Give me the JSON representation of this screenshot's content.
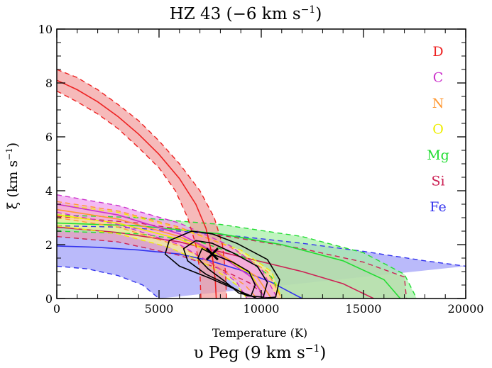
{
  "chart_data": {
    "type": "area",
    "title": "HZ 43 (−6 km s",
    "title_sup": "−1",
    "title_end": ")",
    "xlabel": "Temperature (K)",
    "ylabel": "ξ (km s",
    "ylabel_sup": "−1",
    "ylabel_end": ")",
    "subtitle": "υ Peg (9 km s",
    "subtitle_sup": "−1",
    "subtitle_end": ")",
    "xlim": [
      0,
      20000
    ],
    "ylim": [
      0,
      10
    ],
    "xticks": [
      "0",
      "5000",
      "10000",
      "15000",
      "20000"
    ],
    "yticks": [
      "0",
      "2",
      "4",
      "6",
      "8",
      "10"
    ],
    "legend_position": "top-right",
    "marker": {
      "x": 7600,
      "y": 1.65
    },
    "series": [
      {
        "name": "Fe",
        "color": "#3333ee",
        "fill": "#9f9ff8",
        "center": [
          [
            0,
            1.95
          ],
          [
            2000,
            1.9
          ],
          [
            4000,
            1.8
          ],
          [
            6000,
            1.65
          ],
          [
            7500,
            1.4
          ],
          [
            9000,
            1.05
          ],
          [
            10500,
            0.6
          ],
          [
            11500,
            0.2
          ],
          [
            12000,
            0
          ]
        ],
        "upper": [
          [
            0,
            2.7
          ],
          [
            3000,
            2.65
          ],
          [
            6000,
            2.5
          ],
          [
            9000,
            2.3
          ],
          [
            12000,
            2.05
          ],
          [
            15000,
            1.75
          ],
          [
            18000,
            1.4
          ],
          [
            20000,
            1.2
          ]
        ],
        "lower": [
          [
            0,
            1.2
          ],
          [
            1500,
            1.1
          ],
          [
            3000,
            0.85
          ],
          [
            4200,
            0.5
          ],
          [
            5000,
            0
          ]
        ]
      },
      {
        "name": "Si",
        "color": "#cc2255",
        "fill": "#e8a0b8",
        "center": [
          [
            0,
            2.65
          ],
          [
            3000,
            2.45
          ],
          [
            6000,
            2.1
          ],
          [
            9000,
            1.55
          ],
          [
            12000,
            1.0
          ],
          [
            14000,
            0.55
          ],
          [
            15500,
            0
          ]
        ],
        "upper": [
          [
            0,
            3.05
          ],
          [
            4000,
            2.8
          ],
          [
            8000,
            2.35
          ],
          [
            12000,
            1.85
          ],
          [
            15000,
            1.35
          ],
          [
            17000,
            0.8
          ],
          [
            17100,
            0
          ]
        ],
        "lower": [
          [
            0,
            2.3
          ],
          [
            3000,
            2.1
          ],
          [
            6000,
            1.6
          ],
          [
            8000,
            1.1
          ],
          [
            9500,
            0.55
          ],
          [
            10300,
            0
          ]
        ]
      },
      {
        "name": "Mg",
        "color": "#22dd33",
        "fill": "#a6f0a6",
        "center": [
          [
            0,
            2.8
          ],
          [
            4000,
            2.7
          ],
          [
            8000,
            2.4
          ],
          [
            11000,
            2.0
          ],
          [
            14000,
            1.4
          ],
          [
            16000,
            0.7
          ],
          [
            16800,
            0
          ]
        ],
        "upper": [
          [
            0,
            3.1
          ],
          [
            4000,
            3.0
          ],
          [
            8000,
            2.75
          ],
          [
            12000,
            2.3
          ],
          [
            15000,
            1.7
          ],
          [
            17000,
            0.9
          ],
          [
            17600,
            0
          ]
        ],
        "lower": [
          [
            0,
            2.5
          ],
          [
            4000,
            2.4
          ],
          [
            7000,
            2.1
          ],
          [
            9000,
            1.6
          ],
          [
            10500,
            0.8
          ],
          [
            11000,
            0
          ]
        ]
      },
      {
        "name": "O",
        "color": "#eeee00",
        "fill": "#f4f4a0",
        "center": [
          [
            0,
            3.1
          ],
          [
            3000,
            2.8
          ],
          [
            6000,
            2.2
          ],
          [
            8000,
            1.6
          ],
          [
            9500,
            0.9
          ],
          [
            10200,
            0
          ]
        ],
        "upper": [
          [
            0,
            3.5
          ],
          [
            3000,
            3.2
          ],
          [
            6000,
            2.6
          ],
          [
            9000,
            1.8
          ],
          [
            10500,
            1.0
          ],
          [
            11000,
            0
          ]
        ],
        "lower": [
          [
            0,
            2.7
          ],
          [
            3000,
            2.4
          ],
          [
            5500,
            1.9
          ],
          [
            7500,
            1.2
          ],
          [
            8800,
            0.5
          ],
          [
            9300,
            0
          ]
        ]
      },
      {
        "name": "N",
        "color": "#ff9933",
        "fill": "#ffcc99",
        "center": [
          [
            0,
            3.3
          ],
          [
            3000,
            2.95
          ],
          [
            6000,
            2.3
          ],
          [
            8000,
            1.65
          ],
          [
            9800,
            0.8
          ],
          [
            10500,
            0
          ]
        ],
        "upper": [
          [
            0,
            3.6
          ],
          [
            3000,
            3.25
          ],
          [
            6000,
            2.65
          ],
          [
            8500,
            1.9
          ],
          [
            10300,
            1.0
          ],
          [
            11000,
            0
          ]
        ],
        "lower": [
          [
            0,
            3.0
          ],
          [
            3000,
            2.65
          ],
          [
            6000,
            1.95
          ],
          [
            7800,
            1.2
          ],
          [
            9200,
            0.5
          ],
          [
            9800,
            0
          ]
        ]
      },
      {
        "name": "C",
        "color": "#cc33cc",
        "fill": "#f0a0f0",
        "center": [
          [
            0,
            3.5
          ],
          [
            3000,
            3.1
          ],
          [
            6000,
            2.4
          ],
          [
            7800,
            1.7
          ],
          [
            9500,
            0.8
          ],
          [
            10200,
            0
          ]
        ],
        "upper": [
          [
            0,
            3.85
          ],
          [
            3000,
            3.45
          ],
          [
            6000,
            2.8
          ],
          [
            8500,
            1.95
          ],
          [
            10000,
            1.1
          ],
          [
            10800,
            0
          ]
        ],
        "lower": [
          [
            0,
            3.2
          ],
          [
            3000,
            2.75
          ],
          [
            6000,
            2.0
          ],
          [
            7600,
            1.3
          ],
          [
            8800,
            0.6
          ],
          [
            9300,
            0
          ]
        ]
      },
      {
        "name": "D",
        "color": "#ee2222",
        "fill": "#f2a0a0",
        "center": [
          [
            0,
            8.1
          ],
          [
            1000,
            7.75
          ],
          [
            2000,
            7.3
          ],
          [
            3000,
            6.75
          ],
          [
            4000,
            6.1
          ],
          [
            5000,
            5.35
          ],
          [
            6000,
            4.45
          ],
          [
            6800,
            3.5
          ],
          [
            7300,
            2.6
          ],
          [
            7600,
            1.6
          ],
          [
            7750,
            0.7
          ],
          [
            7800,
            0
          ]
        ],
        "upper": [
          [
            0,
            8.5
          ],
          [
            1000,
            8.2
          ],
          [
            2000,
            7.75
          ],
          [
            3000,
            7.2
          ],
          [
            4000,
            6.6
          ],
          [
            5000,
            5.85
          ],
          [
            6000,
            5.0
          ],
          [
            7000,
            4.0
          ],
          [
            7700,
            3.0
          ],
          [
            8100,
            2.0
          ],
          [
            8250,
            1.0
          ],
          [
            8300,
            0
          ]
        ],
        "lower": [
          [
            0,
            7.7
          ],
          [
            1000,
            7.3
          ],
          [
            2000,
            6.85
          ],
          [
            3000,
            6.3
          ],
          [
            4000,
            5.6
          ],
          [
            5000,
            4.85
          ],
          [
            5800,
            4.0
          ],
          [
            6400,
            3.0
          ],
          [
            6800,
            2.0
          ],
          [
            7000,
            1.0
          ],
          [
            7050,
            0
          ]
        ]
      }
    ],
    "contours": [
      [
        [
          7600,
          1.65
        ],
        [
          8600,
          1.35
        ],
        [
          9400,
          1.0
        ],
        [
          9700,
          0.5
        ],
        [
          9500,
          0.1
        ],
        [
          8900,
          0.2
        ],
        [
          8200,
          0.65
        ],
        [
          7400,
          1.1
        ],
        [
          6900,
          1.5
        ],
        [
          7100,
          1.85
        ],
        [
          7600,
          1.65
        ]
      ],
      [
        [
          7600,
          2.05
        ],
        [
          8600,
          1.7
        ],
        [
          9800,
          1.2
        ],
        [
          10300,
          0.6
        ],
        [
          10100,
          0.05
        ],
        [
          9300,
          0.1
        ],
        [
          8400,
          0.5
        ],
        [
          7300,
          0.9
        ],
        [
          6400,
          1.4
        ],
        [
          6200,
          1.85
        ],
        [
          6800,
          2.15
        ],
        [
          7600,
          2.05
        ]
      ],
      [
        [
          7600,
          2.4
        ],
        [
          8800,
          2.05
        ],
        [
          10300,
          1.45
        ],
        [
          10900,
          0.7
        ],
        [
          10700,
          0.05
        ],
        [
          9800,
          0.0
        ],
        [
          8700,
          0.35
        ],
        [
          7500,
          0.75
        ],
        [
          6000,
          1.2
        ],
        [
          5300,
          1.65
        ],
        [
          5500,
          2.15
        ],
        [
          6600,
          2.5
        ],
        [
          7600,
          2.4
        ]
      ]
    ]
  }
}
